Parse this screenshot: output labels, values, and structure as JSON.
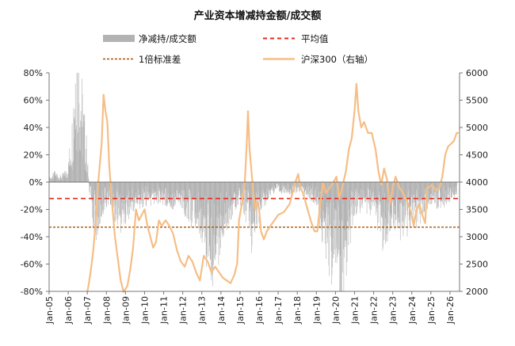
{
  "chart_data": {
    "type": "bar+line",
    "title": "产业资本增减持金额/成交额",
    "legend": {
      "bar": "净减持/成交额",
      "mean": "平均值",
      "sd": "1倍标准差",
      "line": "沪深300（右轴）"
    },
    "colors": {
      "bar": "#b3b3b3",
      "mean": "#e8281e",
      "sd": "#a85000",
      "line": "#f5be86",
      "axis": "#777777"
    },
    "left_axis": {
      "min": -0.8,
      "max": 0.8,
      "ticks": [
        "80%",
        "60%",
        "40%",
        "20%",
        "0%",
        "-20%",
        "-40%",
        "-60%",
        "-80%"
      ]
    },
    "right_axis": {
      "min": 2000,
      "max": 6000,
      "ticks": [
        "6000",
        "5500",
        "5000",
        "4500",
        "4000",
        "3500",
        "3000",
        "2500",
        "2000"
      ]
    },
    "x_ticks": [
      "Jan-05",
      "Jan-06",
      "Jan-07",
      "Jan-08",
      "Jan-09",
      "Jan-10",
      "Jan-11",
      "Jan-12",
      "Jan-13",
      "Jan-14",
      "Jan-15",
      "Jan-16",
      "Jan-17",
      "Jan-18",
      "Jan-19",
      "Jan-20",
      "Jan-21",
      "Jan-22",
      "Jan-23",
      "Jan-24",
      "Jan-25",
      "Jan-26"
    ],
    "x_range_years": [
      2005.0,
      2026.5
    ],
    "mean_value": -0.12,
    "sd_value": -0.33,
    "bar_anchors": [
      [
        2005.0,
        0.02
      ],
      [
        2005.3,
        0.05
      ],
      [
        2005.6,
        0.03
      ],
      [
        2005.9,
        0.06
      ],
      [
        2006.0,
        0.1
      ],
      [
        2006.2,
        0.3
      ],
      [
        2006.4,
        0.8
      ],
      [
        2006.6,
        0.6
      ],
      [
        2006.8,
        0.35
      ],
      [
        2006.95,
        0.2
      ],
      [
        2007.1,
        -0.05
      ],
      [
        2007.3,
        -0.2
      ],
      [
        2007.5,
        -0.27
      ],
      [
        2007.7,
        -0.18
      ],
      [
        2007.9,
        -0.12
      ],
      [
        2008.1,
        -0.1
      ],
      [
        2008.4,
        -0.16
      ],
      [
        2008.7,
        -0.22
      ],
      [
        2008.9,
        -0.2
      ],
      [
        2009.1,
        -0.16
      ],
      [
        2009.4,
        -0.14
      ],
      [
        2009.7,
        -0.12
      ],
      [
        2010.0,
        -0.1
      ],
      [
        2010.3,
        -0.12
      ],
      [
        2010.6,
        -0.09
      ],
      [
        2011.0,
        -0.1
      ],
      [
        2011.4,
        -0.12
      ],
      [
        2011.8,
        -0.1
      ],
      [
        2012.1,
        -0.15
      ],
      [
        2012.5,
        -0.2
      ],
      [
        2012.9,
        -0.25
      ],
      [
        2013.2,
        -0.35
      ],
      [
        2013.5,
        -0.45
      ],
      [
        2013.8,
        -0.4
      ],
      [
        2014.0,
        -0.28
      ],
      [
        2014.3,
        -0.22
      ],
      [
        2014.6,
        -0.14
      ],
      [
        2014.9,
        -0.1
      ],
      [
        2015.1,
        -0.12
      ],
      [
        2015.4,
        -0.2
      ],
      [
        2015.6,
        -0.3
      ],
      [
        2015.8,
        -0.2
      ],
      [
        2016.0,
        -0.18
      ],
      [
        2016.3,
        -0.1
      ],
      [
        2016.6,
        -0.06
      ],
      [
        2017.0,
        -0.04
      ],
      [
        2017.4,
        -0.06
      ],
      [
        2017.8,
        -0.05
      ],
      [
        2018.2,
        -0.04
      ],
      [
        2018.6,
        -0.07
      ],
      [
        2019.0,
        -0.12
      ],
      [
        2019.3,
        -0.28
      ],
      [
        2019.6,
        -0.38
      ],
      [
        2019.9,
        -0.48
      ],
      [
        2020.1,
        -0.55
      ],
      [
        2020.3,
        -0.65
      ],
      [
        2020.5,
        -0.45
      ],
      [
        2020.7,
        -0.3
      ],
      [
        2020.9,
        -0.2
      ],
      [
        2021.1,
        -0.15
      ],
      [
        2021.5,
        -0.12
      ],
      [
        2021.9,
        -0.16
      ],
      [
        2022.2,
        -0.22
      ],
      [
        2022.5,
        -0.3
      ],
      [
        2022.8,
        -0.24
      ],
      [
        2023.1,
        -0.2
      ],
      [
        2023.4,
        -0.26
      ],
      [
        2023.7,
        -0.24
      ],
      [
        2024.0,
        -0.18
      ],
      [
        2024.4,
        -0.22
      ],
      [
        2024.7,
        -0.14
      ],
      [
        2025.0,
        -0.1
      ],
      [
        2025.4,
        -0.12
      ],
      [
        2025.8,
        -0.1
      ],
      [
        2026.3,
        -0.06
      ]
    ],
    "line_points": [
      [
        2007.0,
        1990
      ],
      [
        2007.05,
        2080
      ],
      [
        2007.15,
        2300
      ],
      [
        2007.3,
        2700
      ],
      [
        2007.45,
        3300
      ],
      [
        2007.55,
        3900
      ],
      [
        2007.65,
        4300
      ],
      [
        2007.75,
        4700
      ],
      [
        2007.85,
        5600
      ],
      [
        2007.95,
        5300
      ],
      [
        2008.05,
        5100
      ],
      [
        2008.15,
        4300
      ],
      [
        2008.3,
        3600
      ],
      [
        2008.45,
        3000
      ],
      [
        2008.6,
        2600
      ],
      [
        2008.75,
        2200
      ],
      [
        2008.9,
        1990
      ],
      [
        2009.1,
        2100
      ],
      [
        2009.25,
        2400
      ],
      [
        2009.4,
        2800
      ],
      [
        2009.55,
        3500
      ],
      [
        2009.7,
        3300
      ],
      [
        2009.85,
        3400
      ],
      [
        2010.0,
        3500
      ],
      [
        2010.15,
        3200
      ],
      [
        2010.3,
        3000
      ],
      [
        2010.45,
        2800
      ],
      [
        2010.6,
        2900
      ],
      [
        2010.75,
        3300
      ],
      [
        2010.9,
        3200
      ],
      [
        2011.1,
        3300
      ],
      [
        2011.3,
        3200
      ],
      [
        2011.5,
        3050
      ],
      [
        2011.7,
        2750
      ],
      [
        2011.9,
        2550
      ],
      [
        2012.1,
        2450
      ],
      [
        2012.3,
        2650
      ],
      [
        2012.5,
        2550
      ],
      [
        2012.7,
        2350
      ],
      [
        2012.9,
        2200
      ],
      [
        2013.1,
        2650
      ],
      [
        2013.3,
        2550
      ],
      [
        2013.5,
        2350
      ],
      [
        2013.7,
        2450
      ],
      [
        2013.9,
        2350
      ],
      [
        2014.1,
        2250
      ],
      [
        2014.3,
        2200
      ],
      [
        2014.5,
        2150
      ],
      [
        2014.7,
        2300
      ],
      [
        2014.85,
        2500
      ],
      [
        2014.95,
        3300
      ],
      [
        2015.1,
        3600
      ],
      [
        2015.25,
        4000
      ],
      [
        2015.35,
        4700
      ],
      [
        2015.42,
        5300
      ],
      [
        2015.5,
        4600
      ],
      [
        2015.6,
        4200
      ],
      [
        2015.7,
        3800
      ],
      [
        2015.8,
        3500
      ],
      [
        2015.9,
        3650
      ],
      [
        2016.0,
        3500
      ],
      [
        2016.1,
        3100
      ],
      [
        2016.25,
        2950
      ],
      [
        2016.4,
        3100
      ],
      [
        2016.6,
        3200
      ],
      [
        2016.8,
        3300
      ],
      [
        2017.0,
        3400
      ],
      [
        2017.3,
        3450
      ],
      [
        2017.6,
        3600
      ],
      [
        2017.9,
        4000
      ],
      [
        2018.05,
        4150
      ],
      [
        2018.15,
        3900
      ],
      [
        2018.3,
        3800
      ],
      [
        2018.5,
        3550
      ],
      [
        2018.7,
        3300
      ],
      [
        2018.9,
        3100
      ],
      [
        2019.05,
        3100
      ],
      [
        2019.2,
        3600
      ],
      [
        2019.35,
        4000
      ],
      [
        2019.5,
        3800
      ],
      [
        2019.7,
        3900
      ],
      [
        2019.9,
        4000
      ],
      [
        2020.05,
        4100
      ],
      [
        2020.2,
        3700
      ],
      [
        2020.35,
        3900
      ],
      [
        2020.55,
        4200
      ],
      [
        2020.7,
        4600
      ],
      [
        2020.85,
        4800
      ],
      [
        2021.0,
        5300
      ],
      [
        2021.1,
        5800
      ],
      [
        2021.2,
        5300
      ],
      [
        2021.35,
        5000
      ],
      [
        2021.5,
        5100
      ],
      [
        2021.7,
        4900
      ],
      [
        2021.9,
        4900
      ],
      [
        2022.1,
        4600
      ],
      [
        2022.25,
        4200
      ],
      [
        2022.4,
        3950
      ],
      [
        2022.55,
        4250
      ],
      [
        2022.7,
        4050
      ],
      [
        2022.85,
        3600
      ],
      [
        2023.0,
        3900
      ],
      [
        2023.15,
        4100
      ],
      [
        2023.35,
        3900
      ],
      [
        2023.55,
        3800
      ],
      [
        2023.75,
        3650
      ],
      [
        2023.95,
        3450
      ],
      [
        2024.1,
        3200
      ],
      [
        2024.25,
        3500
      ],
      [
        2024.4,
        3600
      ],
      [
        2024.55,
        3400
      ],
      [
        2024.7,
        3250
      ],
      [
        2024.8,
        3900
      ],
      [
        2024.9,
        3900
      ],
      [
        2025.05,
        3950
      ],
      [
        2025.25,
        3850
      ],
      [
        2025.45,
        3900
      ],
      [
        2025.6,
        4100
      ],
      [
        2025.75,
        4500
      ],
      [
        2025.9,
        4650
      ],
      [
        2026.05,
        4700
      ],
      [
        2026.2,
        4750
      ],
      [
        2026.35,
        4900
      ],
      [
        2026.45,
        4900
      ]
    ]
  }
}
